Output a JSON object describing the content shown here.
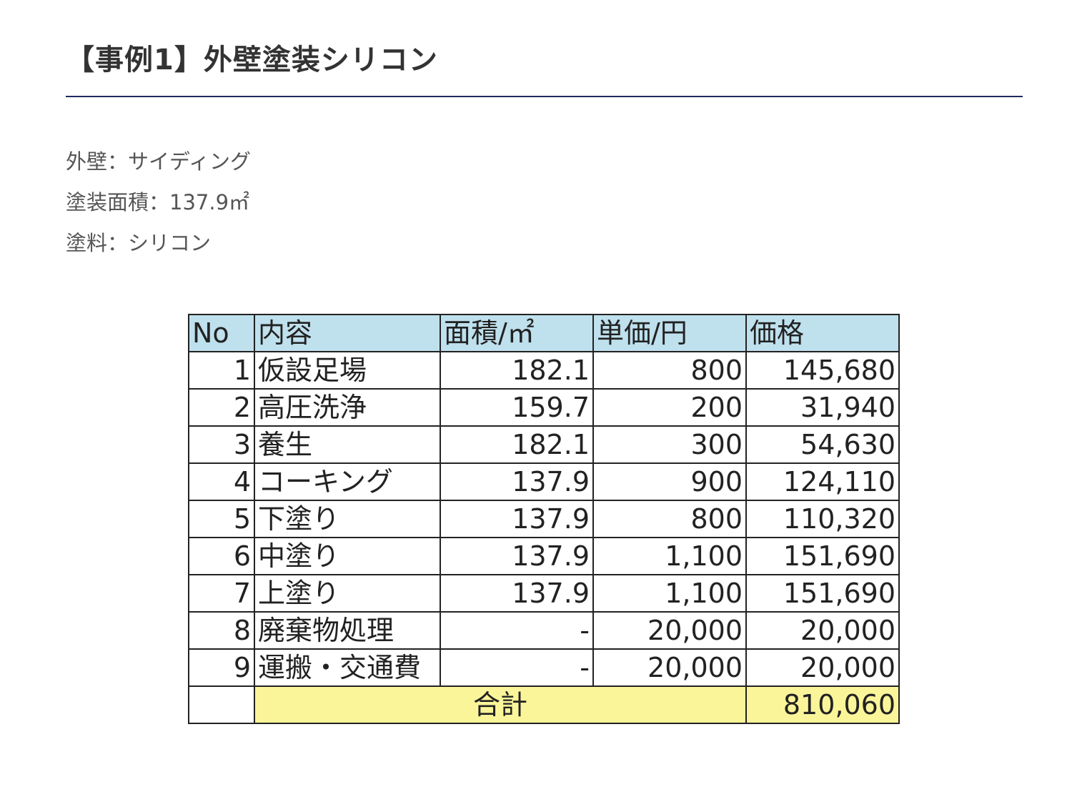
{
  "title": "【事例1】外壁塗装シリコン",
  "specs": [
    "外壁：サイディング",
    "塗装面積：137.9㎡",
    "塗料：シリコン"
  ],
  "table": {
    "headers": [
      "No",
      "内容",
      "面積/㎡",
      "単価/円",
      "価格"
    ],
    "rows": [
      {
        "no": "1",
        "item": "仮設足場",
        "area": "182.1",
        "unit": "800",
        "price": "145,680"
      },
      {
        "no": "2",
        "item": "高圧洗浄",
        "area": "159.7",
        "unit": "200",
        "price": "31,940"
      },
      {
        "no": "3",
        "item": "養生",
        "area": "182.1",
        "unit": "300",
        "price": "54,630"
      },
      {
        "no": "4",
        "item": "コーキング",
        "area": "137.9",
        "unit": "900",
        "price": "124,110"
      },
      {
        "no": "5",
        "item": "下塗り",
        "area": "137.9",
        "unit": "800",
        "price": "110,320"
      },
      {
        "no": "6",
        "item": "中塗り",
        "area": "137.9",
        "unit": "1,100",
        "price": "151,690"
      },
      {
        "no": "7",
        "item": "上塗り",
        "area": "137.9",
        "unit": "1,100",
        "price": "151,690"
      },
      {
        "no": "8",
        "item": "廃棄物処理",
        "area": "-",
        "unit": "20,000",
        "price": "20,000"
      },
      {
        "no": "9",
        "item": "運搬・交通費",
        "area": "-",
        "unit": "20,000",
        "price": "20,000"
      }
    ],
    "total_label": "合計",
    "total_value": "810,060"
  },
  "colors": {
    "header_bg": "#bfe0ed",
    "total_bg": "#fbf59a",
    "heading_rule": "#1f2a5c"
  }
}
